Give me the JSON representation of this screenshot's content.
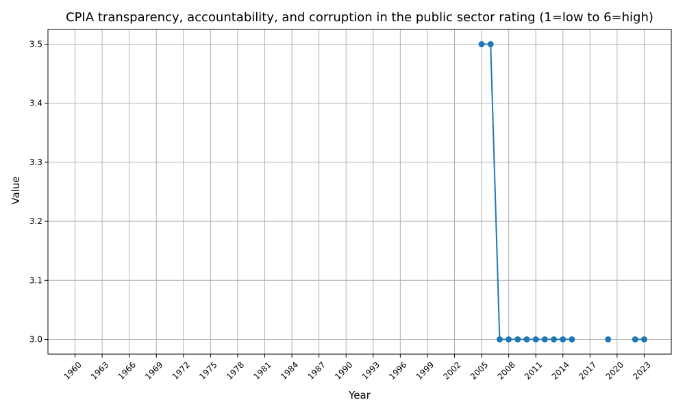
{
  "chart_data": {
    "type": "line",
    "title": "CPIA transparency, accountability, and corruption in the public sector rating (1=low to 6=high)",
    "xlabel": "Year",
    "ylabel": "Value",
    "xlim": [
      1960,
      2023
    ],
    "ylim": [
      2.975,
      3.525
    ],
    "x_ticks": [
      "1960",
      "1963",
      "1966",
      "1969",
      "1972",
      "1975",
      "1978",
      "1981",
      "1984",
      "1987",
      "1990",
      "1993",
      "1996",
      "1999",
      "2002",
      "2005",
      "2008",
      "2011",
      "2014",
      "2017",
      "2020",
      "2023"
    ],
    "y_ticks": [
      "3.0",
      "3.1",
      "3.2",
      "3.3",
      "3.4",
      "3.5"
    ],
    "grid": true,
    "series": [
      {
        "color": "#1f77b4",
        "points": [
          {
            "x": 2005,
            "y": 3.5
          },
          {
            "x": 2006,
            "y": 3.5
          },
          {
            "x": 2007,
            "y": 3.0
          },
          {
            "x": 2008,
            "y": 3.0
          },
          {
            "x": 2009,
            "y": 3.0
          },
          {
            "x": 2010,
            "y": 3.0
          },
          {
            "x": 2011,
            "y": 3.0
          },
          {
            "x": 2012,
            "y": 3.0
          },
          {
            "x": 2013,
            "y": 3.0
          },
          {
            "x": 2014,
            "y": 3.0
          },
          {
            "x": 2015,
            "y": 3.0
          },
          {
            "x": 2019,
            "y": 3.0
          },
          {
            "x": 2022,
            "y": 3.0
          },
          {
            "x": 2023,
            "y": 3.0
          }
        ]
      }
    ]
  }
}
